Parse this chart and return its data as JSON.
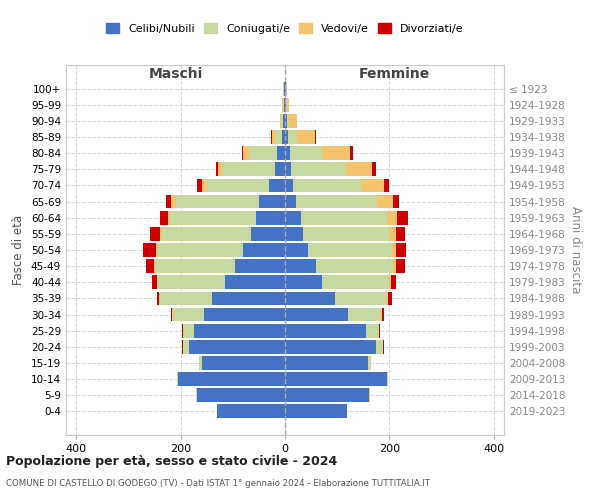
{
  "age_groups": [
    "0-4",
    "5-9",
    "10-14",
    "15-19",
    "20-24",
    "25-29",
    "30-34",
    "35-39",
    "40-44",
    "45-49",
    "50-54",
    "55-59",
    "60-64",
    "65-69",
    "70-74",
    "75-79",
    "80-84",
    "85-89",
    "90-94",
    "95-99",
    "100+"
  ],
  "birth_years": [
    "2019-2023",
    "2014-2018",
    "2009-2013",
    "2004-2008",
    "1999-2003",
    "1994-1998",
    "1989-1993",
    "1984-1988",
    "1979-1983",
    "1974-1978",
    "1969-1973",
    "1964-1968",
    "1959-1963",
    "1954-1958",
    "1949-1953",
    "1944-1948",
    "1939-1943",
    "1934-1938",
    "1929-1933",
    "1924-1928",
    "≤ 1923"
  ],
  "maschi": {
    "celibi": [
      130,
      168,
      205,
      160,
      185,
      175,
      155,
      140,
      115,
      95,
      80,
      65,
      55,
      50,
      30,
      20,
      15,
      5,
      3,
      2,
      2
    ],
    "coniugati": [
      1,
      2,
      3,
      5,
      10,
      20,
      60,
      100,
      130,
      155,
      165,
      170,
      165,
      160,
      120,
      100,
      55,
      15,
      5,
      2,
      1
    ],
    "vedovi": [
      0,
      0,
      0,
      0,
      1,
      1,
      1,
      1,
      1,
      2,
      3,
      4,
      5,
      8,
      10,
      8,
      10,
      5,
      2,
      1,
      0
    ],
    "divorziati": [
      0,
      0,
      0,
      0,
      1,
      2,
      3,
      5,
      10,
      15,
      25,
      20,
      15,
      10,
      8,
      5,
      2,
      1,
      0,
      0,
      0
    ]
  },
  "femmine": {
    "nubili": [
      118,
      162,
      195,
      160,
      175,
      155,
      120,
      95,
      70,
      60,
      45,
      35,
      30,
      22,
      15,
      12,
      10,
      5,
      3,
      2,
      2
    ],
    "coniugate": [
      1,
      1,
      2,
      5,
      12,
      25,
      65,
      100,
      130,
      148,
      160,
      165,
      165,
      155,
      130,
      105,
      60,
      18,
      5,
      2,
      1
    ],
    "vedove": [
      0,
      0,
      0,
      0,
      1,
      1,
      1,
      2,
      3,
      5,
      8,
      12,
      20,
      30,
      45,
      50,
      55,
      35,
      15,
      3,
      0
    ],
    "divorziate": [
      0,
      0,
      0,
      0,
      1,
      2,
      4,
      8,
      10,
      18,
      20,
      18,
      20,
      12,
      10,
      8,
      5,
      2,
      0,
      0,
      0
    ]
  },
  "colors": {
    "celibi_nubili": "#4472C4",
    "coniugati": "#C5D9A0",
    "vedovi": "#F5C36C",
    "divorziati": "#CC0000"
  },
  "title1": "Popolazione per età, sesso e stato civile - 2024",
  "title2": "COMUNE DI CASTELLO DI GODEGO (TV) - Dati ISTAT 1° gennaio 2024 - Elaborazione TUTTITALIA.IT",
  "xlabel_left": "Maschi",
  "xlabel_right": "Femmine",
  "ylabel_left": "Fasce di età",
  "ylabel_right": "Anni di nascita",
  "xlim": 420,
  "xticks": [
    -400,
    -200,
    0,
    200,
    400
  ],
  "xticklabels": [
    "400",
    "200",
    "0",
    "200",
    "400"
  ],
  "background_color": "#ffffff",
  "grid_color": "#cccccc"
}
